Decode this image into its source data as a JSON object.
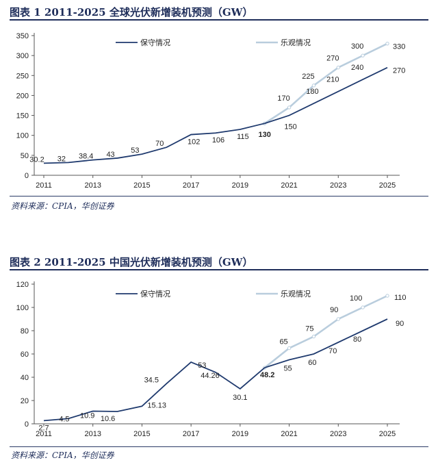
{
  "colors": {
    "conservative": "#1f3a6e",
    "optimistic": "#b9cddd",
    "text": "#1e2d5a"
  },
  "figures": [
    {
      "title": "图表 1   2011-2025 全球光伏新增装机预测（GW）",
      "source": "资料来源：CPIA，华创证券"
    },
    {
      "title": "图表 2   2011-2025 中国光伏新增装机预测（GW）",
      "source": "资料来源：CPIA，华创证券"
    }
  ],
  "chart_data": [
    {
      "type": "line",
      "title": "2011-2025 全球光伏新增装机预测（GW）",
      "x": [
        2011,
        2012,
        2013,
        2014,
        2015,
        2016,
        2017,
        2018,
        2019,
        2020,
        2021,
        2022,
        2023,
        2024,
        2025
      ],
      "x_tick_labels": [
        "2011",
        "2013",
        "2015",
        "2017",
        "2019",
        "2021",
        "2023",
        "2025"
      ],
      "ylim": [
        0,
        350
      ],
      "y_ticks": [
        0,
        50,
        100,
        150,
        200,
        250,
        300,
        350
      ],
      "legend_position": "top",
      "grid": false,
      "series": [
        {
          "name": "保守情况",
          "points": [
            [
              2011,
              30.2
            ],
            [
              2012,
              32
            ],
            [
              2013,
              38.4
            ],
            [
              2014,
              43
            ],
            [
              2015,
              53
            ],
            [
              2016,
              70
            ],
            [
              2017,
              102
            ],
            [
              2018,
              106
            ],
            [
              2019,
              115
            ],
            [
              2020,
              130
            ],
            [
              2021,
              150
            ],
            [
              2022,
              180
            ],
            [
              2023,
              210
            ],
            [
              2024,
              240
            ],
            [
              2025,
              270
            ]
          ],
          "labels": [
            "30.2",
            "32",
            "38.4",
            "43",
            "53",
            "70",
            "102",
            "106",
            "115",
            "130",
            "150",
            "180",
            "210",
            "240",
            "270"
          ]
        },
        {
          "name": "乐观情况",
          "points": [
            [
              2020,
              130
            ],
            [
              2021,
              170
            ],
            [
              2022,
              225
            ],
            [
              2023,
              270
            ],
            [
              2024,
              300
            ],
            [
              2025,
              330
            ]
          ],
          "labels": [
            "",
            "170",
            "225",
            "270",
            "300",
            "330"
          ]
        }
      ]
    },
    {
      "type": "line",
      "title": "2011-2025 中国光伏新增装机预测（GW）",
      "x": [
        2011,
        2012,
        2013,
        2014,
        2015,
        2016,
        2017,
        2018,
        2019,
        2020,
        2021,
        2022,
        2023,
        2024,
        2025
      ],
      "x_tick_labels": [
        "2011",
        "2013",
        "2015",
        "2017",
        "2019",
        "2021",
        "2023",
        "2025"
      ],
      "ylim": [
        0,
        120
      ],
      "y_ticks": [
        0,
        20,
        40,
        60,
        80,
        100,
        120
      ],
      "legend_position": "top",
      "grid": false,
      "series": [
        {
          "name": "保守情况",
          "points": [
            [
              2011,
              2.7
            ],
            [
              2012,
              4.5
            ],
            [
              2013,
              10.9
            ],
            [
              2014,
              10.6
            ],
            [
              2015,
              15.13
            ],
            [
              2016,
              34.5
            ],
            [
              2017,
              53
            ],
            [
              2018,
              44.26
            ],
            [
              2019,
              30.1
            ],
            [
              2020,
              48.2
            ],
            [
              2021,
              55
            ],
            [
              2022,
              60
            ],
            [
              2023,
              70
            ],
            [
              2024,
              80
            ],
            [
              2025,
              90
            ]
          ],
          "labels": [
            "2.7",
            "4.5",
            "10.9",
            "10.6",
            "15.13",
            "34.5",
            "53",
            "44.26",
            "30.1",
            "48.2",
            "55",
            "60",
            "70",
            "80",
            "90"
          ]
        },
        {
          "name": "乐观情况",
          "points": [
            [
              2020,
              48.2
            ],
            [
              2021,
              65
            ],
            [
              2022,
              75
            ],
            [
              2023,
              90
            ],
            [
              2024,
              100
            ],
            [
              2025,
              110
            ]
          ],
          "labels": [
            "",
            "65",
            "75",
            "90",
            "100",
            "110"
          ]
        }
      ]
    }
  ]
}
